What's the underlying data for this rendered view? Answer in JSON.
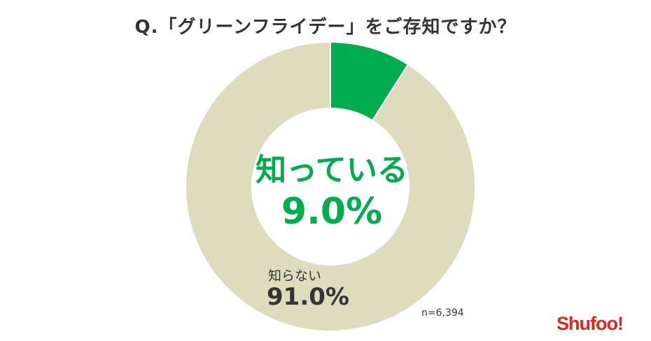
{
  "header": {
    "title": "Q.「グリーンフライデー」をご存知ですか？"
  },
  "chart_data": {
    "type": "pie",
    "variant": "donut",
    "title": "Q.「グリーンフライデー」をご存知ですか？",
    "slices": [
      {
        "label": "知っている",
        "value": 9.0,
        "display": "9.0%",
        "color": "#00ad4e"
      },
      {
        "label": "知らない",
        "value": 91.0,
        "display": "91.0%",
        "color": "#dddcbd"
      }
    ],
    "start": "top",
    "direction": "clockwise"
  },
  "note": "n=6,394",
  "logo": "Shufoo!"
}
